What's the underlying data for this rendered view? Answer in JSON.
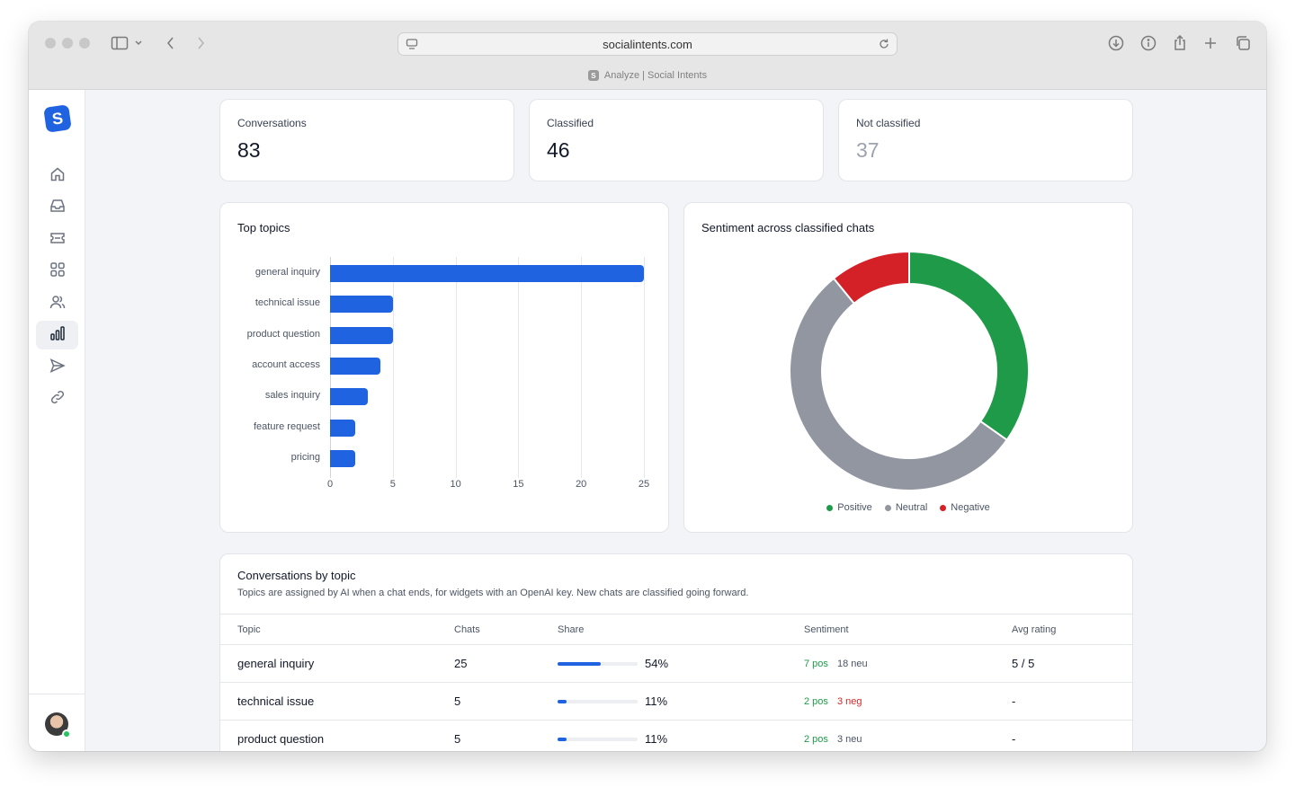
{
  "browser": {
    "url": "socialintents.com",
    "tab_title": "Analyze | Social Intents",
    "favicon_letter": "S"
  },
  "app": {
    "logo_letter": "S",
    "nav": [
      {
        "name": "home",
        "icon": "home-icon",
        "active": false
      },
      {
        "name": "inbox",
        "icon": "inbox-icon",
        "active": false
      },
      {
        "name": "tickets",
        "icon": "ticket-icon",
        "active": false
      },
      {
        "name": "apps",
        "icon": "grid-icon",
        "active": false
      },
      {
        "name": "users",
        "icon": "users-icon",
        "active": false
      },
      {
        "name": "analyze",
        "icon": "bar-chart-icon",
        "active": true
      },
      {
        "name": "campaigns",
        "icon": "send-icon",
        "active": false
      },
      {
        "name": "integrations",
        "icon": "link-icon",
        "active": false
      }
    ]
  },
  "stats": {
    "conversations": {
      "label": "Conversations",
      "value": "83"
    },
    "classified": {
      "label": "Classified",
      "value": "46"
    },
    "not_classified": {
      "label": "Not classified",
      "value": "37"
    }
  },
  "top_topics": {
    "title": "Top topics",
    "chart_data": {
      "type": "bar",
      "orientation": "horizontal",
      "categories": [
        "general inquiry",
        "technical issue",
        "product question",
        "account access",
        "sales inquiry",
        "feature request",
        "pricing"
      ],
      "values": [
        25,
        5,
        5,
        4,
        3,
        2,
        2
      ],
      "xticks": [
        "0",
        "5",
        "10",
        "15",
        "20",
        "25"
      ],
      "xlim": [
        0,
        25
      ],
      "grid": true,
      "color": "#1f63e0"
    }
  },
  "sentiment": {
    "title": "Sentiment across classified chats",
    "chart_data": {
      "type": "pie",
      "style": "donut",
      "labels": [
        "Positive",
        "Neutral",
        "Negative"
      ],
      "values": [
        16,
        25,
        5
      ],
      "colors": [
        "#1f9a48",
        "#9196a0",
        "#d42027"
      ],
      "legend": "bottom"
    }
  },
  "table": {
    "title": "Conversations by topic",
    "subtitle": "Topics are assigned by AI when a chat ends, for widgets with an OpenAI key. New chats are classified going forward.",
    "headers": {
      "topic": "Topic",
      "chats": "Chats",
      "share": "Share",
      "sentiment": "Sentiment",
      "rating": "Avg rating"
    },
    "rows": [
      {
        "topic": "general inquiry",
        "chats": "25",
        "share_pct": 54,
        "share": "54%",
        "s1": "7 pos",
        "s1_type": "pos",
        "s2": "18 neu",
        "s2_type": "neu",
        "rating": "5 / 5"
      },
      {
        "topic": "technical issue",
        "chats": "5",
        "share_pct": 11,
        "share": "11%",
        "s1": "2 pos",
        "s1_type": "pos",
        "s2": "3 neg",
        "s2_type": "neg",
        "rating": "-"
      },
      {
        "topic": "product question",
        "chats": "5",
        "share_pct": 11,
        "share": "11%",
        "s1": "2 pos",
        "s1_type": "pos",
        "s2": "3 neu",
        "s2_type": "neu",
        "rating": "-"
      }
    ]
  }
}
